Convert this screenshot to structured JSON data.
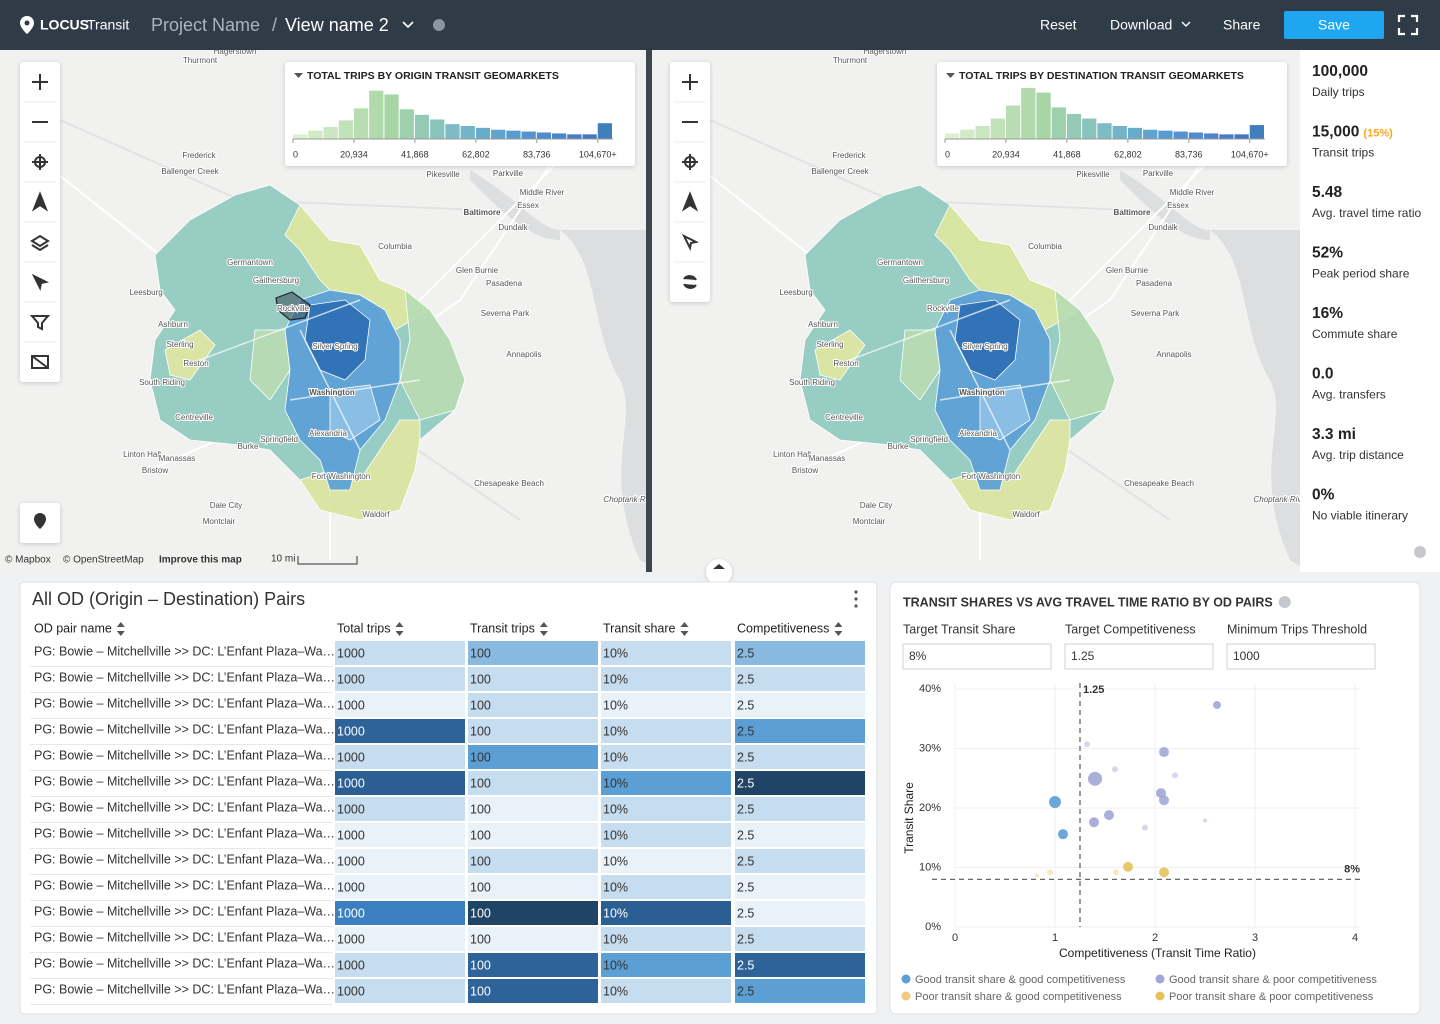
{
  "header": {
    "logo": "LOCUS",
    "product": "Transit",
    "project": "Project Name",
    "separator": "/",
    "view": "View name 2",
    "actions": [
      "Reset",
      "Download",
      "Share"
    ],
    "save": "Save"
  },
  "map_labels": [
    "Hagerstown",
    "Thurmont",
    "Frederick",
    "Ballenger Creek",
    "Germantown",
    "Gaithersburg",
    "Leesburg",
    "Ashburn",
    "Rockville",
    "Silver Spring",
    "Washington",
    "Alexandria",
    "Columbia",
    "Baltimore",
    "Pikesville",
    "Parkville",
    "Middle River",
    "Essex",
    "Dundalk",
    "Glen Burnie",
    "Pasadena",
    "Severna Park",
    "Annapolis",
    "Sterling",
    "Reston",
    "South Riding",
    "Centreville",
    "Springfield",
    "Burke",
    "Linton Hall",
    "Manassas",
    "Bristow",
    "Fort Washington",
    "Chesapeake Beach",
    "Dale City",
    "Montclair",
    "Waldorf",
    "Choptank River"
  ],
  "attribution": {
    "mapbox": "© Mapbox",
    "osm": "© OpenStreetMap",
    "improve": "Improve this map",
    "scale": "10 mi"
  },
  "histograms": [
    {
      "type": "bar",
      "title": "TOTAL TRIPS BY ORIGIN TRANSIT GEOMARKETS",
      "bins": [
        0,
        5233.5,
        10467,
        15700.5,
        20934,
        26167.5,
        31401,
        36634.5,
        41868,
        47101.5,
        52335,
        57568.5,
        62802,
        68035.5,
        73269,
        78502.5,
        83736,
        88969.5,
        94203,
        99436.5,
        104670,
        109903.5
      ],
      "values": [
        5,
        9,
        13,
        20,
        33,
        52,
        48,
        32,
        26,
        21,
        16,
        14,
        12,
        10,
        9,
        8,
        7,
        6,
        5,
        5,
        17
      ],
      "ylim": [
        0,
        56
      ],
      "colors": [
        "#dcefcf",
        "#d3eac7",
        "#cbe6c0",
        "#c2e2b9",
        "#b9ddb2",
        "#b1d9ac",
        "#a8d5a6",
        "#9fd0ad",
        "#94cab5",
        "#88c3bc",
        "#7dbcc2",
        "#72b4c8",
        "#68accb",
        "#60a4ce",
        "#599bcf",
        "#5493d0",
        "#508bce",
        "#4c84cb",
        "#487cc7",
        "#4575c2",
        "#3f7fbd"
      ],
      "xticks": [
        0,
        {
          "value": 20934,
          "label": "20,934"
        },
        {
          "value": 41868,
          "label": "41,868"
        },
        {
          "value": 62802,
          "label": "62,802"
        },
        {
          "value": 83736,
          "label": "83,736"
        },
        {
          "value": 104670,
          "label": "104,670+"
        }
      ]
    },
    {
      "type": "bar",
      "title": "TOTAL TRIPS BY DESTINATION TRANSIT GEOMARKETS",
      "bins": [
        0,
        5233.5,
        10467,
        15700.5,
        20934,
        26167.5,
        31401,
        36634.5,
        41868,
        47101.5,
        52335,
        57568.5,
        62802,
        68035.5,
        73269,
        78502.5,
        83736,
        88969.5,
        94203,
        99436.5,
        104670,
        109903.5
      ],
      "values": [
        6,
        10,
        14,
        22,
        36,
        55,
        50,
        34,
        27,
        22,
        17,
        14,
        12,
        10,
        9,
        8,
        7,
        6,
        5,
        5,
        15
      ],
      "ylim": [
        0,
        56
      ],
      "colors": [
        "#dcefcf",
        "#d3eac7",
        "#cbe6c0",
        "#c2e2b9",
        "#b9ddb2",
        "#b1d9ac",
        "#a8d5a6",
        "#9fd0ad",
        "#94cab5",
        "#88c3bc",
        "#7dbcc2",
        "#72b4c8",
        "#68accb",
        "#60a4ce",
        "#599bcf",
        "#5493d0",
        "#508bce",
        "#4c84cb",
        "#487cc7",
        "#4575c2",
        "#3f7fbd"
      ],
      "xticks": [
        0,
        {
          "value": 20934,
          "label": "20,934"
        },
        {
          "value": 41868,
          "label": "41,868"
        },
        {
          "value": 62802,
          "label": "62,802"
        },
        {
          "value": 83736,
          "label": "83,736"
        },
        {
          "value": 104670,
          "label": "104,670+"
        }
      ]
    }
  ],
  "kpis": [
    {
      "value": "100,000",
      "label": "Daily trips"
    },
    {
      "value": "15,000",
      "note": "(15%)",
      "label": "Transit trips"
    },
    {
      "value": "5.48",
      "label": "Avg. travel time ratio"
    },
    {
      "value": "52%",
      "label": "Peak period share"
    },
    {
      "value": "16%",
      "label": "Commute share"
    },
    {
      "value": "0.0",
      "label": "Avg. transfers"
    },
    {
      "value": "3.3 mi",
      "label": "Avg. trip distance"
    },
    {
      "value": "0%",
      "label": "No viable itinerary"
    }
  ],
  "table": {
    "title": "All OD (Origin – Destination) Pairs",
    "columns": [
      "OD pair name",
      "Total trips",
      "Transit trips",
      "Transit share",
      "Competitiveness"
    ],
    "rows": [
      [
        "PG: Bowie – Mitchellville >> DC: L’Enfant Plaza–Wa…",
        "1000",
        "100",
        "10%",
        "2.5"
      ],
      [
        "PG: Bowie – Mitchellville >> DC: L’Enfant Plaza–Wa…",
        "1000",
        "100",
        "10%",
        "2.5"
      ],
      [
        "PG: Bowie – Mitchellville >> DC: L’Enfant Plaza–Wa…",
        "1000",
        "100",
        "10%",
        "2.5"
      ],
      [
        "PG: Bowie – Mitchellville >> DC: L’Enfant Plaza–Wa…",
        "1000",
        "100",
        "10%",
        "2.5"
      ],
      [
        "PG: Bowie – Mitchellville >> DC: L’Enfant Plaza–Wa…",
        "1000",
        "100",
        "10%",
        "2.5"
      ],
      [
        "PG: Bowie – Mitchellville >> DC: L’Enfant Plaza–Wa…",
        "1000",
        "100",
        "10%",
        "2.5"
      ],
      [
        "PG: Bowie – Mitchellville >> DC: L’Enfant Plaza–Wa…",
        "1000",
        "100",
        "10%",
        "2.5"
      ],
      [
        "PG: Bowie – Mitchellville >> DC: L’Enfant Plaza–Wa…",
        "1000",
        "100",
        "10%",
        "2.5"
      ],
      [
        "PG: Bowie – Mitchellville >> DC: L’Enfant Plaza–Wa…",
        "1000",
        "100",
        "10%",
        "2.5"
      ],
      [
        "PG: Bowie – Mitchellville >> DC: L’Enfant Plaza–Wa…",
        "1000",
        "100",
        "10%",
        "2.5"
      ],
      [
        "PG: Bowie – Mitchellville >> DC: L’Enfant Plaza–Wa…",
        "1000",
        "100",
        "10%",
        "2.5"
      ],
      [
        "PG: Bowie – Mitchellville >> DC: L’Enfant Plaza–Wa…",
        "1000",
        "100",
        "10%",
        "2.5"
      ],
      [
        "PG: Bowie – Mitchellville >> DC: L’Enfant Plaza–Wa…",
        "1000",
        "100",
        "10%",
        "2.5"
      ],
      [
        "PG: Bowie – Mitchellville >> DC: L’Enfant Plaza–Wa…",
        "1000",
        "100",
        "10%",
        "2.5"
      ]
    ],
    "cell_colors": [
      [
        "#c6dcef",
        "#8ab9e0",
        "#c6dcef",
        "#8ab9e0"
      ],
      [
        "#c6dcef",
        "#c6dcef",
        "#c6dcef",
        "#c6dcef"
      ],
      [
        "#e9f1f9",
        "#c6dcef",
        "#e9f1f9",
        "#e9f1f9"
      ],
      [
        "#2e6399",
        "#c6dcef",
        "#c6dcef",
        "#5b9fd4"
      ],
      [
        "#c6dcef",
        "#5b9fd4",
        "#c6dcef",
        "#c6dcef"
      ],
      [
        "#2b5f93",
        "#c6dcef",
        "#5b9fd4",
        "#1f4466"
      ],
      [
        "#c6dcef",
        "#e9f1f9",
        "#c6dcef",
        "#c6dcef"
      ],
      [
        "#e9f1f9",
        "#e9f1f9",
        "#c6dcef",
        "#e9f1f9"
      ],
      [
        "#e9f1f9",
        "#c6dcef",
        "#e9f1f9",
        "#c6dcef"
      ],
      [
        "#e9f1f9",
        "#e9f1f9",
        "#c6dcef",
        "#e9f1f9"
      ],
      [
        "#3b7fc0",
        "#1f4466",
        "#2b5f93",
        "#e9f1f9"
      ],
      [
        "#e9f1f9",
        "#e9f1f9",
        "#c6dcef",
        "#c6dcef"
      ],
      [
        "#c6dcef",
        "#2e6399",
        "#5b9fd4",
        "#2e6399"
      ],
      [
        "#c6dcef",
        "#2e6399",
        "#c6dcef",
        "#5b9fd4"
      ]
    ]
  },
  "scatter": {
    "type": "scatter",
    "title": "TRANSIT SHARES VS AVG TRAVEL TIME RATIO BY OD PAIRS",
    "filters": [
      {
        "label": "Target Transit Share",
        "value": "8%"
      },
      {
        "label": "Target Competitiveness",
        "value": "1.25"
      },
      {
        "label": "Minimum Trips Threshold",
        "value": "1000"
      }
    ],
    "xlabel": "Competitiveness (Transit Time Ratio)",
    "ylabel": "Transit Share",
    "xlim": [
      0,
      4.05
    ],
    "ylim": [
      0,
      41
    ],
    "xticks": [
      0,
      1,
      2,
      3,
      4
    ],
    "yticks": [
      {
        "value": 0,
        "label": "0%"
      },
      {
        "value": 10,
        "label": "10%"
      },
      {
        "value": 20,
        "label": "20%"
      },
      {
        "value": 30,
        "label": "30%"
      },
      {
        "value": 40,
        "label": "40%"
      }
    ],
    "x_reference": 1.25,
    "y_reference": {
      "value": 8,
      "label": "8%"
    },
    "series": [
      {
        "name": "Good transit share & good competitiveness",
        "color": "#5b9fd4",
        "x": [
          1.0,
          1.08
        ],
        "values": [
          21.0,
          15.6
        ],
        "sizes": [
          6,
          5
        ]
      },
      {
        "name": "Good transit share & poor competitiveness",
        "color": "#a3a6d6",
        "x": [
          1.4,
          2.09,
          2.06,
          2.09,
          2.62,
          1.54,
          1.39,
          1.32,
          2.2,
          1.9,
          1.6,
          2.5
        ],
        "values": [
          24.9,
          29.4,
          22.5,
          21.3,
          37.3,
          18.8,
          17.6,
          30.7,
          25.5,
          16.7,
          26.5,
          17.9
        ],
        "sizes": [
          7,
          5,
          5,
          5,
          4,
          5,
          5,
          3,
          3,
          3,
          3,
          2
        ]
      },
      {
        "name": "Poor transit share & good competitiveness",
        "color": "#f2c97d",
        "x": [
          0.95,
          0.82,
          1.61
        ],
        "values": [
          9.2,
          8.7,
          9.2
        ],
        "sizes": [
          3,
          2,
          3
        ]
      },
      {
        "name": "Poor transit share & poor competitiveness",
        "color": "#e6c35a",
        "x": [
          1.73,
          2.09
        ],
        "values": [
          10.1,
          9.2
        ],
        "sizes": [
          5,
          5
        ]
      }
    ]
  }
}
